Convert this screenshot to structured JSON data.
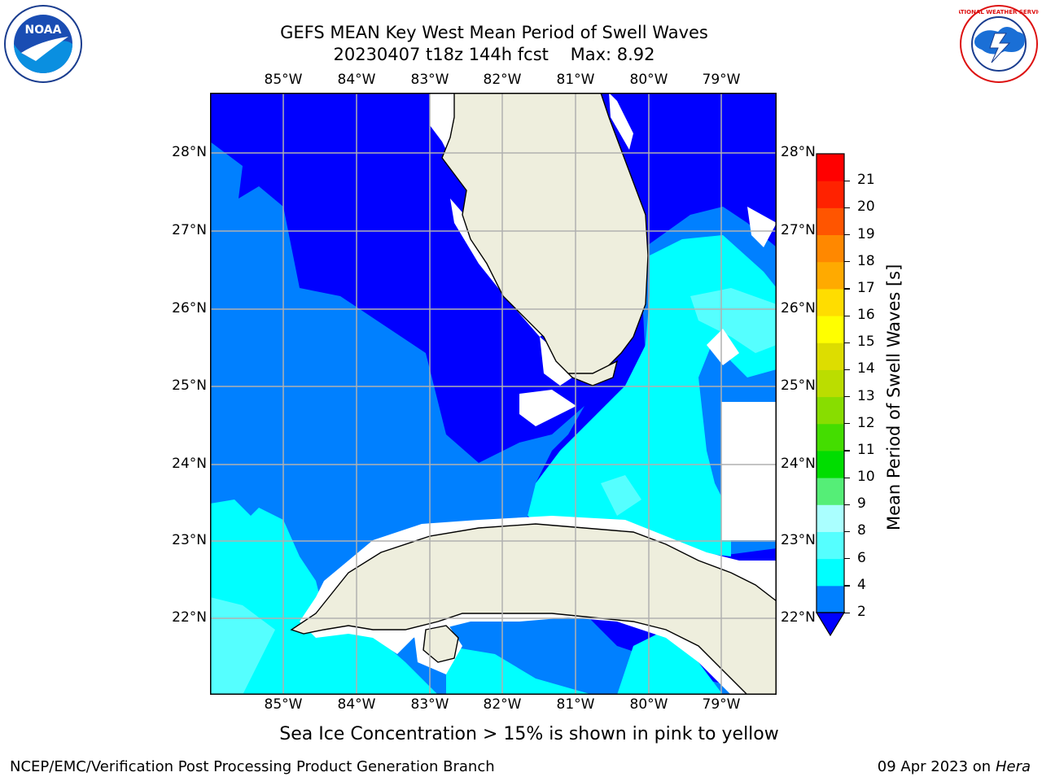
{
  "title": {
    "line1": "GEFS MEAN Key West Mean Period of Swell Waves",
    "line2": "20230407 t18z 144h fcst    Max: 8.92"
  },
  "logos": {
    "left_text": "NOAA",
    "right_text": "NATIONAL WEATHER SERVICE"
  },
  "map": {
    "lon_ticks": [
      "85°W",
      "84°W",
      "83°W",
      "82°W",
      "81°W",
      "80°W",
      "79°W"
    ],
    "lat_ticks": [
      "28°N",
      "27°N",
      "26°N",
      "25°N",
      "24°N",
      "23°N",
      "22°N"
    ],
    "lon_values": [
      -85,
      -84,
      -83,
      -82,
      -81,
      -80,
      -79
    ],
    "lat_values": [
      28,
      27,
      26,
      25,
      24,
      23,
      22
    ],
    "lon_range": [
      -86,
      -78.3
    ],
    "lat_range": [
      21,
      28.8
    ],
    "grid": true,
    "ocean_colors": [
      "#0000ff",
      "#0080ff",
      "#00ffff",
      "#55ffff"
    ],
    "land_color": "#eeeedd"
  },
  "colorbar": {
    "label": "Mean Period of Swell Waves [s]",
    "ticks": [
      "2",
      "4",
      "6",
      "8",
      "9",
      "10",
      "11",
      "12",
      "13",
      "14",
      "15",
      "16",
      "17",
      "18",
      "19",
      "20",
      "21"
    ],
    "colors": [
      "#0080ff",
      "#00ffff",
      "#55ffff",
      "#aaffff",
      "#55ee77",
      "#00dd00",
      "#44dd00",
      "#88dd00",
      "#bbdd00",
      "#dddd00",
      "#ffff00",
      "#ffdd00",
      "#ffaa00",
      "#ff8800",
      "#ff5500",
      "#ff2200",
      "#ff0000"
    ],
    "under_color": "#0000ff"
  },
  "note": "Sea Ice Concentration > 15% is shown in pink to yellow",
  "footer": {
    "left": "NCEP/EMC/Verification Post Processing Product Generation Branch",
    "date": "09 Apr 2023 on ",
    "host": "Hera"
  }
}
